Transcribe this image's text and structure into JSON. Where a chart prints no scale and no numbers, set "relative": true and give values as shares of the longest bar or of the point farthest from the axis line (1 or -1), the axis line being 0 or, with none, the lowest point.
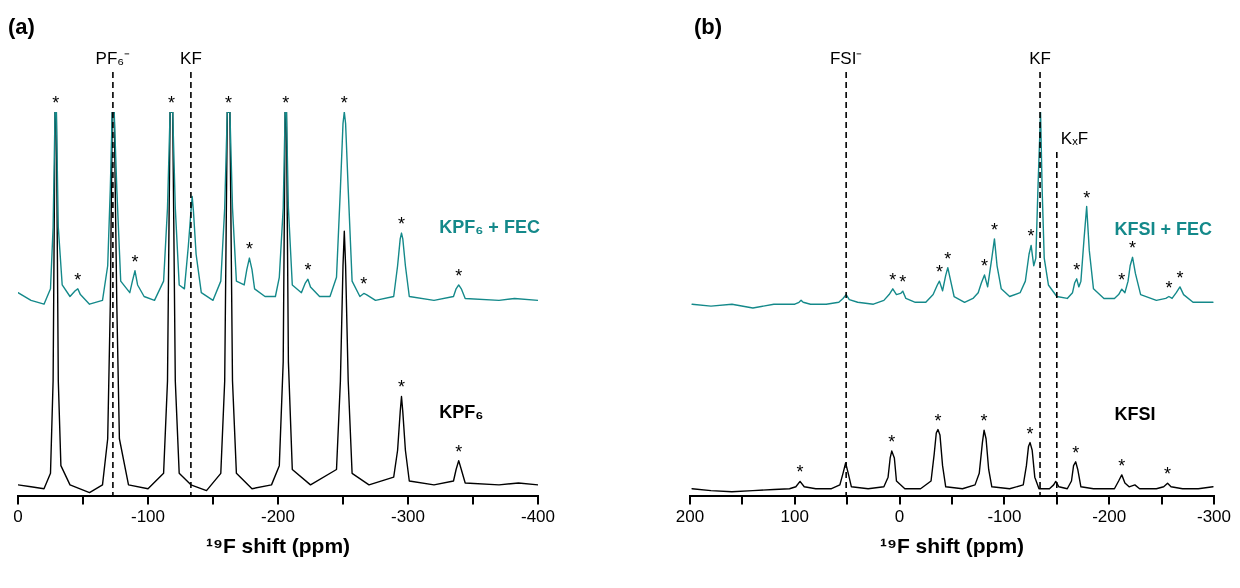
{
  "chart_data": [
    {
      "type": "line",
      "title": "(a)",
      "xlabel": "¹⁹F shift (ppm)",
      "relative": true,
      "xlim": [
        0,
        -400
      ],
      "xticks": [
        0,
        {
          "value": -50,
          "label": null
        },
        -100,
        {
          "value": -150,
          "label": null
        },
        -200,
        {
          "value": -250,
          "label": null
        },
        -300,
        {
          "value": -350,
          "label": null
        },
        -400
      ],
      "legend": false,
      "marker": "none",
      "tick_labels": "x",
      "series": [
        {
          "name": "KPF₆ + FEC",
          "color": "#14898a",
          "x": [
            0,
            -10,
            -20,
            -25,
            -27,
            -28.5,
            -29.5,
            -31,
            -34,
            -40,
            -44,
            -46,
            -48,
            -55,
            -65,
            -69,
            -71,
            -72.5,
            -74,
            -76,
            -79,
            -86,
            -88,
            -90,
            -92,
            -97,
            -105,
            -112,
            -115,
            -117,
            -119,
            -121,
            -124,
            -128,
            -131,
            -133,
            -134,
            -135,
            -137,
            -141,
            -150,
            -156,
            -159,
            -161,
            -163,
            -165,
            -168,
            -174,
            -176,
            -178,
            -180,
            -182,
            -190,
            -198,
            -201,
            -204,
            -205.5,
            -206.5,
            -208,
            -211,
            -218,
            -221,
            -223,
            -225,
            -232,
            -240,
            -245,
            -248,
            -250,
            -251,
            -252,
            -254,
            -257,
            -263,
            -266,
            -268,
            -275,
            -289,
            -292,
            -294,
            -295,
            -296,
            -298,
            -301,
            -320,
            -335,
            -337,
            -339,
            -341,
            -344,
            -370,
            -382,
            -400
          ],
          "values": [
            0.53,
            0.51,
            0.5,
            0.54,
            0.7,
            1,
            1,
            0.7,
            0.55,
            0.52,
            0.535,
            0.54,
            0.525,
            0.5,
            0.51,
            0.6,
            0.8,
            1,
            1,
            0.8,
            0.56,
            0.53,
            0.56,
            0.587,
            0.55,
            0.52,
            0.51,
            0.56,
            0.75,
            1,
            1,
            0.75,
            0.55,
            0.54,
            0.65,
            0.74,
            0.78,
            0.74,
            0.63,
            0.53,
            0.51,
            0.56,
            0.75,
            1,
            1,
            0.75,
            0.56,
            0.55,
            0.59,
            0.62,
            0.59,
            0.54,
            0.52,
            0.52,
            0.57,
            0.75,
            1,
            1,
            0.75,
            0.55,
            0.53,
            0.555,
            0.565,
            0.545,
            0.52,
            0.52,
            0.57,
            0.8,
            0.97,
            1,
            0.97,
            0.8,
            0.56,
            0.52,
            0.528,
            0.525,
            0.51,
            0.52,
            0.6,
            0.67,
            0.685,
            0.67,
            0.6,
            0.52,
            0.51,
            0.52,
            0.54,
            0.55,
            0.54,
            0.515,
            0.51,
            0.515,
            0.51
          ]
        },
        {
          "name": "KPF₆",
          "color": "#000000",
          "x": [
            0,
            -10,
            -20,
            -25,
            -27,
            -28.5,
            -29.5,
            -31,
            -33,
            -40,
            -55,
            -65,
            -69,
            -71,
            -72.5,
            -74,
            -76,
            -78,
            -85,
            -100,
            -112,
            -115,
            -117,
            -119,
            -121,
            -124,
            -133,
            -145,
            -156,
            -159,
            -161,
            -163,
            -165,
            -168,
            -180,
            -195,
            -201,
            -204,
            -205.5,
            -206.5,
            -208,
            -211,
            -225,
            -245,
            -248,
            -250,
            -251,
            -252,
            -254,
            -257,
            -270,
            -289,
            -292,
            -294,
            -295,
            -296,
            -298,
            -301,
            -320,
            -335,
            -337,
            -339,
            -341,
            -344,
            -370,
            -385,
            -400
          ],
          "values": [
            0.03,
            0.025,
            0.02,
            0.06,
            0.3,
            1,
            1,
            0.3,
            0.08,
            0.03,
            0.01,
            0.03,
            0.15,
            0.5,
            1,
            1,
            0.5,
            0.15,
            0.03,
            0.02,
            0.06,
            0.3,
            1,
            1,
            0.3,
            0.06,
            0.03,
            0.015,
            0.06,
            0.3,
            1,
            1,
            0.3,
            0.06,
            0.02,
            0.03,
            0.08,
            0.35,
            1,
            1,
            0.35,
            0.07,
            0.03,
            0.07,
            0.3,
            0.6,
            0.69,
            0.6,
            0.3,
            0.06,
            0.03,
            0.05,
            0.12,
            0.22,
            0.26,
            0.22,
            0.12,
            0.04,
            0.03,
            0.04,
            0.07,
            0.093,
            0.07,
            0.035,
            0.03,
            0.035,
            0.03
          ]
        }
      ],
      "ref_lines": [
        {
          "axis": "x",
          "value": -73,
          "label": "PF₆⁻",
          "line_style": "dashed"
        },
        {
          "axis": "x",
          "value": -133,
          "label": "KF",
          "line_style": "dashed"
        }
      ],
      "annotations": [
        {
          "text": "*",
          "x": -29,
          "y": 1
        },
        {
          "text": "*",
          "x": -46,
          "y": 0.54
        },
        {
          "text": "*",
          "x": -90,
          "y": 0.587
        },
        {
          "text": "*",
          "x": -118,
          "y": 1
        },
        {
          "text": "*",
          "x": -162,
          "y": 1
        },
        {
          "text": "*",
          "x": -178,
          "y": 0.62
        },
        {
          "text": "*",
          "x": -206,
          "y": 1
        },
        {
          "text": "*",
          "x": -223,
          "y": 0.565
        },
        {
          "text": "*",
          "x": -251,
          "y": 1
        },
        {
          "text": "*",
          "x": -266,
          "y": 0.528
        },
        {
          "text": "*",
          "x": -295,
          "y": 0.685
        },
        {
          "text": "*",
          "x": -339,
          "y": 0.55
        },
        {
          "text": "*",
          "x": -295,
          "y": 0.26
        },
        {
          "text": "*",
          "x": -339,
          "y": 0.093
        }
      ]
    },
    {
      "type": "line",
      "title": "(b)",
      "xlabel": "¹⁹F shift (ppm)",
      "relative": true,
      "xlim": [
        200,
        -300
      ],
      "xticks": [
        200,
        {
          "value": 150,
          "label": null
        },
        100,
        {
          "value": 50,
          "label": null
        },
        0,
        {
          "value": -50,
          "label": null
        },
        -100,
        {
          "value": -150,
          "label": null
        },
        -200,
        {
          "value": -250,
          "label": null
        },
        -300
      ],
      "legend": false,
      "marker": "none",
      "tick_labels": "x",
      "series": [
        {
          "name": "KFSI + FEC",
          "color": "#14898a",
          "x": [
            198,
            180,
            160,
            140,
            120,
            100,
            96,
            94,
            92,
            85,
            70,
            58,
            54,
            51,
            48,
            40,
            25,
            15,
            10,
            6.5,
            3,
            -1,
            -3,
            -6,
            -15,
            -25,
            -32,
            -36,
            -38,
            -41,
            -44,
            -46,
            -48,
            -52,
            -62,
            -70,
            -75,
            -78,
            -81,
            -84,
            -88,
            -90.5,
            -93,
            -97,
            -105,
            -115,
            -120,
            -123.5,
            -125.5,
            -128,
            -130,
            -132,
            -134.5,
            -136,
            -138,
            -142,
            -150,
            -160,
            -165,
            -167,
            -169,
            -171,
            -173,
            -176,
            -178.5,
            -181,
            -185,
            -195,
            -205,
            -209,
            -212,
            -215,
            -218,
            -220,
            -222.3,
            -225,
            -230,
            -245,
            -254,
            -257,
            -260,
            -264,
            -267.5,
            -271,
            -280,
            -290,
            -299
          ],
          "values": [
            0.5,
            0.495,
            0.5,
            0.49,
            0.5,
            0.5,
            0.505,
            0.51,
            0.505,
            0.5,
            0.5,
            0.505,
            0.515,
            0.525,
            0.512,
            0.505,
            0.5,
            0.51,
            0.525,
            0.54,
            0.525,
            0.528,
            0.534,
            0.515,
            0.505,
            0.505,
            0.525,
            0.55,
            0.56,
            0.535,
            0.575,
            0.595,
            0.57,
            0.52,
            0.505,
            0.515,
            0.53,
            0.555,
            0.576,
            0.545,
            0.62,
            0.67,
            0.6,
            0.54,
            0.52,
            0.53,
            0.56,
            0.63,
            0.653,
            0.6,
            0.62,
            0.8,
            1,
            0.8,
            0.62,
            0.55,
            0.52,
            0.515,
            0.53,
            0.555,
            0.566,
            0.545,
            0.56,
            0.67,
            0.754,
            0.64,
            0.54,
            0.515,
            0.515,
            0.525,
            0.539,
            0.53,
            0.56,
            0.6,
            0.622,
            0.58,
            0.525,
            0.51,
            0.515,
            0.52,
            0.515,
            0.53,
            0.545,
            0.525,
            0.505,
            0.505,
            0.505
          ]
        },
        {
          "name": "KFSI",
          "color": "#000000",
          "x": [
            198,
            180,
            160,
            140,
            120,
            105,
            99,
            95,
            91,
            80,
            65,
            57,
            54,
            51.5,
            49,
            46,
            30,
            15,
            11,
            9,
            7.5,
            5,
            3,
            -5,
            -20,
            -30,
            -33,
            -35,
            -36.6,
            -38.5,
            -41,
            -44,
            -60,
            -72,
            -76,
            -79,
            -80.6,
            -82.5,
            -85,
            -88,
            -105,
            -118,
            -121,
            -123,
            -124.5,
            -126.5,
            -129,
            -133,
            -143,
            -147,
            -149,
            -152,
            -160,
            -164,
            -166,
            -168,
            -170,
            -173,
            -185,
            -205,
            -209,
            -212,
            -215,
            -219,
            -224.5,
            -229,
            -245,
            -252,
            -255.7,
            -259,
            -270,
            -285,
            -299
          ],
          "values": [
            0.02,
            0.015,
            0.012,
            0.015,
            0.018,
            0.02,
            0.025,
            0.039,
            0.025,
            0.02,
            0.02,
            0.03,
            0.06,
            0.087,
            0.06,
            0.025,
            0.02,
            0.025,
            0.05,
            0.1,
            0.118,
            0.1,
            0.04,
            0.02,
            0.02,
            0.04,
            0.11,
            0.165,
            0.174,
            0.16,
            0.08,
            0.025,
            0.02,
            0.03,
            0.06,
            0.14,
            0.172,
            0.15,
            0.07,
            0.025,
            0.02,
            0.03,
            0.08,
            0.13,
            0.14,
            0.12,
            0.05,
            0.02,
            0.02,
            0.03,
            0.039,
            0.025,
            0.02,
            0.04,
            0.08,
            0.09,
            0.07,
            0.025,
            0.02,
            0.02,
            0.04,
            0.056,
            0.035,
            0.025,
            0.03,
            0.02,
            0.02,
            0.025,
            0.034,
            0.025,
            0.02,
            0.02,
            0.025
          ]
        }
      ],
      "ref_lines": [
        {
          "axis": "x",
          "value": 51,
          "label": "FSI⁻",
          "line_style": "dashed"
        },
        {
          "axis": "x",
          "value": -134,
          "label": "KF",
          "line_style": "dashed"
        },
        {
          "axis": "x",
          "value": -150,
          "label": "KₓF",
          "line_style": "dashed"
        }
      ],
      "annotations": [
        {
          "text": "*",
          "x": 6.5,
          "y": 0.54
        },
        {
          "text": "*",
          "x": -3,
          "y": 0.534
        },
        {
          "text": "*",
          "x": -38,
          "y": 0.56
        },
        {
          "text": "*",
          "x": -46,
          "y": 0.595
        },
        {
          "text": "*",
          "x": -81,
          "y": 0.576
        },
        {
          "text": "*",
          "x": -90.5,
          "y": 0.67
        },
        {
          "text": "*",
          "x": -125.5,
          "y": 0.653
        },
        {
          "text": "*",
          "x": -169,
          "y": 0.566
        },
        {
          "text": "*",
          "x": -178.5,
          "y": 0.754
        },
        {
          "text": "*",
          "x": -212,
          "y": 0.539
        },
        {
          "text": "*",
          "x": -222.3,
          "y": 0.622
        },
        {
          "text": "*",
          "x": -257,
          "y": 0.52
        },
        {
          "text": "*",
          "x": -267.5,
          "y": 0.545
        },
        {
          "text": "*",
          "x": 95,
          "y": 0.039
        },
        {
          "text": "*",
          "x": 7.5,
          "y": 0.118
        },
        {
          "text": "*",
          "x": -36.6,
          "y": 0.174
        },
        {
          "text": "*",
          "x": -80.6,
          "y": 0.172
        },
        {
          "text": "*",
          "x": -124.5,
          "y": 0.14
        },
        {
          "text": "*",
          "x": -168,
          "y": 0.09
        },
        {
          "text": "*",
          "x": -212,
          "y": 0.056
        },
        {
          "text": "*",
          "x": -255.7,
          "y": 0.034
        }
      ]
    }
  ]
}
